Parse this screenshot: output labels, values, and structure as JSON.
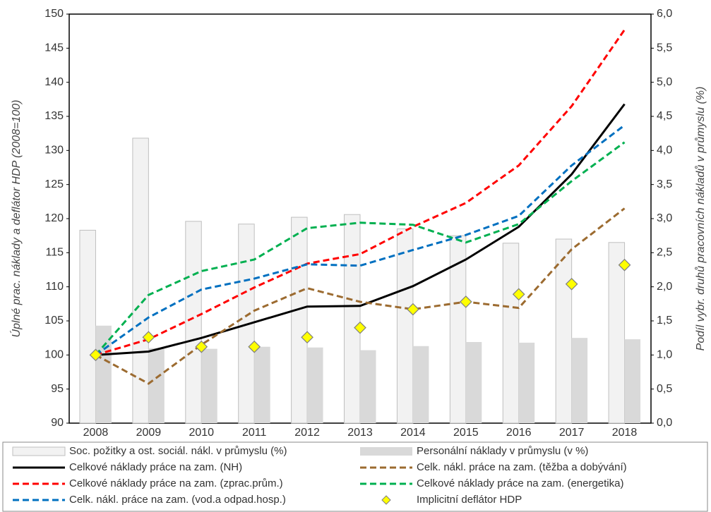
{
  "chart_data": {
    "type": "combo",
    "y_label": "Úplné prac. náklady a deflátor HDP (2008=100)",
    "y2_label": "Podíl vybr. druhů pracovních nákladů v průmyslu (%)",
    "categories": [
      "2008",
      "2009",
      "2010",
      "2011",
      "2012",
      "2013",
      "2014",
      "2015",
      "2016",
      "2017",
      "2018"
    ],
    "ylim": [
      90,
      150
    ],
    "yticks": [
      90,
      95,
      100,
      105,
      110,
      115,
      120,
      125,
      130,
      135,
      140,
      145,
      150
    ],
    "y2lim": [
      0,
      6
    ],
    "y2ticks": [
      {
        "value": 0,
        "label": "0,0"
      },
      {
        "value": 0.5,
        "label": "0,5"
      },
      {
        "value": 1,
        "label": "1,0"
      },
      {
        "value": 1.5,
        "label": "1,5"
      },
      {
        "value": 2,
        "label": "2,0"
      },
      {
        "value": 2.5,
        "label": "2,5"
      },
      {
        "value": 3,
        "label": "3,0"
      },
      {
        "value": 3.5,
        "label": "3,5"
      },
      {
        "value": 4,
        "label": "4,0"
      },
      {
        "value": 4.5,
        "label": "4,5"
      },
      {
        "value": 5,
        "label": "5,0"
      },
      {
        "value": 5.5,
        "label": "5,5"
      },
      {
        "value": 6,
        "label": "6,0"
      }
    ],
    "series": [
      {
        "name": "Soc. požitky a ost. sociál. nákl. v průmyslu (%)",
        "type": "bar",
        "axis": "y2",
        "color": "#f2f2f2",
        "values": [
          2.83,
          4.18,
          2.96,
          2.92,
          3.02,
          3.06,
          2.85,
          2.75,
          2.64,
          2.7,
          2.65
        ]
      },
      {
        "name": "Personální náklady v průmyslu (v %)",
        "type": "bar",
        "axis": "y2",
        "color": "#d9d9d9",
        "values": [
          1.43,
          1.1,
          1.09,
          1.12,
          1.11,
          1.07,
          1.13,
          1.19,
          1.18,
          1.25,
          1.23
        ]
      },
      {
        "name": "Celkové náklady práce na zam. (NH)",
        "type": "line",
        "color": "#000000",
        "dashed": false,
        "values": [
          100,
          100.5,
          102.5,
          104.8,
          107.1,
          107.2,
          110.1,
          114.0,
          118.8,
          126.5,
          136.8
        ]
      },
      {
        "name": "Celk. nákl. práce na zam. (těžba a dobývání)",
        "type": "line",
        "color": "#9c6b30",
        "dashed": true,
        "values": [
          100,
          95.8,
          101.5,
          106.5,
          109.8,
          107.8,
          106.7,
          107.8,
          106.9,
          115.5,
          121.5
        ]
      },
      {
        "name": "Celkové náklady práce na zam. (zprac.prům.)",
        "type": "line",
        "color": "#ff0000",
        "dashed": true,
        "values": [
          100,
          102.3,
          106.0,
          109.9,
          113.4,
          114.8,
          118.8,
          122.3,
          127.8,
          136.5,
          147.7
        ]
      },
      {
        "name": "Celkové náklady práce na zam. (energetika)",
        "type": "line",
        "color": "#00b050",
        "dashed": true,
        "values": [
          100,
          108.8,
          112.3,
          114.0,
          118.6,
          119.4,
          119.1,
          116.5,
          119.2,
          125.5,
          131.2
        ]
      },
      {
        "name": "Celk. nákl. práce na zam. (vod.a odpad.hosp.)",
        "type": "line",
        "color": "#0070c0",
        "dashed": true,
        "values": [
          100,
          105.5,
          109.6,
          111.2,
          113.3,
          113.1,
          115.4,
          117.6,
          120.4,
          127.8,
          133.7
        ]
      },
      {
        "name": "Implicitní deflátor HDP",
        "type": "scatter",
        "color": "#ffff00",
        "values": [
          100,
          102.6,
          101.2,
          101.2,
          102.6,
          104.0,
          106.7,
          107.8,
          108.9,
          110.4,
          113.2
        ]
      }
    ]
  }
}
